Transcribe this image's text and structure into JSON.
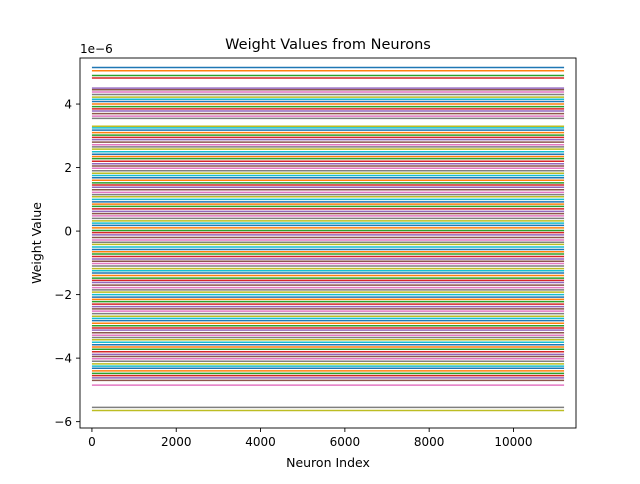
{
  "chart_data": {
    "type": "line",
    "title": "Weight Values from Neurons",
    "xlabel": "Neuron Index",
    "ylabel": "Weight Value",
    "y_offset_label": "1e−6",
    "xlim": [
      -283,
      11483
    ],
    "ylim": [
      -6.2,
      5.45
    ],
    "x_ticks": [
      0,
      2000,
      4000,
      6000,
      8000,
      10000
    ],
    "x_tick_labels": [
      "0",
      "2000",
      "4000",
      "6000",
      "8000",
      "10000"
    ],
    "y_ticks": [
      -6,
      -4,
      -2,
      0,
      2,
      4
    ],
    "y_tick_labels": [
      "−6",
      "−4",
      "−2",
      "0",
      "2",
      "4"
    ],
    "x_range": [
      0,
      11200
    ],
    "grid": false,
    "legend": "none",
    "series_colors": [
      "#1f77b4",
      "#ff7f0e",
      "#2ca02c",
      "#d62728",
      "#9467bd",
      "#8c564b",
      "#e377c2",
      "#7f7f7f",
      "#bcbd22",
      "#17becf"
    ],
    "series_levels_e6": [
      5.15,
      5.05,
      4.9,
      4.82,
      4.5,
      4.45,
      4.38,
      4.3,
      4.22,
      4.15,
      4.08,
      4.0,
      3.92,
      3.85,
      3.78,
      3.7,
      3.62,
      3.55,
      3.3,
      3.25,
      3.18,
      3.1,
      3.02,
      2.95,
      2.88,
      2.8,
      2.72,
      2.65,
      2.58,
      2.5,
      2.42,
      2.35,
      2.28,
      2.2,
      2.12,
      2.05,
      1.98,
      1.9,
      1.82,
      1.75,
      1.68,
      1.6,
      1.52,
      1.45,
      1.38,
      1.3,
      1.22,
      1.15,
      1.08,
      1.0,
      0.92,
      0.85,
      0.78,
      0.7,
      0.62,
      0.55,
      0.48,
      0.4,
      0.32,
      0.25,
      0.18,
      0.1,
      0.02,
      -0.05,
      -0.12,
      -0.2,
      -0.28,
      -0.35,
      -0.42,
      -0.5,
      -0.58,
      -0.65,
      -0.72,
      -0.8,
      -0.88,
      -0.95,
      -1.02,
      -1.1,
      -1.18,
      -1.25,
      -1.32,
      -1.4,
      -1.48,
      -1.55,
      -1.62,
      -1.7,
      -1.78,
      -1.85,
      -1.92,
      -2.0,
      -2.08,
      -2.15,
      -2.22,
      -2.3,
      -2.38,
      -2.45,
      -2.52,
      -2.6,
      -2.68,
      -2.75,
      -2.82,
      -2.9,
      -2.98,
      -3.05,
      -3.12,
      -3.2,
      -3.28,
      -3.35,
      -3.42,
      -3.5,
      -3.58,
      -3.65,
      -3.72,
      -3.8,
      -3.88,
      -3.95,
      -4.02,
      -4.1,
      -4.18,
      -4.25,
      -4.32,
      -4.4,
      -4.48,
      -4.55,
      -4.62,
      -4.7,
      -4.85,
      -5.55,
      -5.65
    ]
  }
}
